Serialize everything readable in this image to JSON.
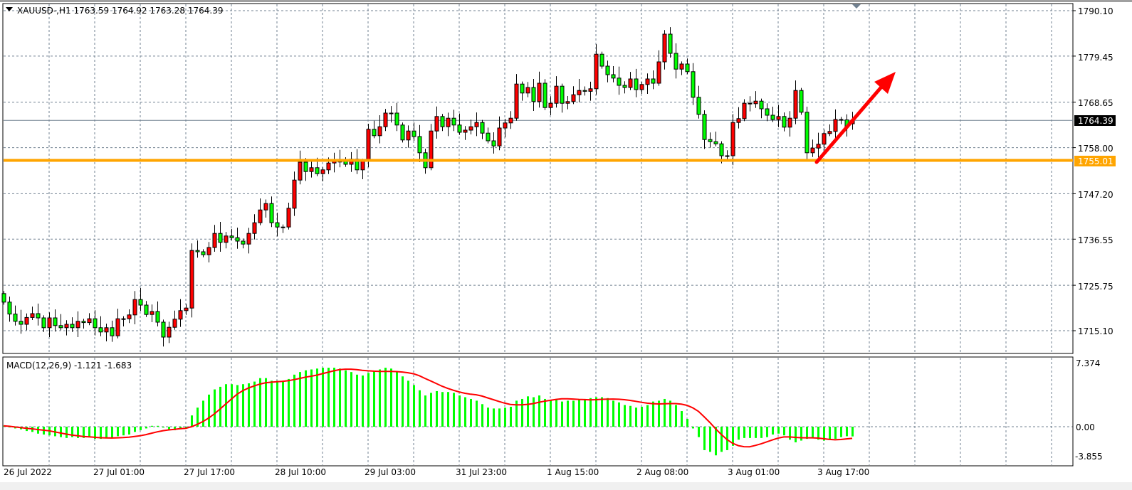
{
  "header": {
    "symbol": "XAUUSD-,H1",
    "open": "1763.59",
    "high": "1764.92",
    "low": "1763.28",
    "close": "1764.39"
  },
  "price_axis": {
    "ticks": [
      "1790.10",
      "1779.45",
      "1768.65",
      "1758.00",
      "1747.20",
      "1736.55",
      "1725.75",
      "1715.10"
    ],
    "current_price_label": "1764.39",
    "level_label": "1755.01"
  },
  "time_axis": {
    "labels": [
      "26 Jul 2022",
      "27 Jul 01:00",
      "27 Jul 17:00",
      "28 Jul 10:00",
      "29 Jul 03:00",
      "31 Jul 23:00",
      "1 Aug 15:00",
      "2 Aug 08:00",
      "3 Aug 01:00",
      "3 Aug 17:00"
    ]
  },
  "macd_panel": {
    "label": "MACD(12,26,9) -1.121 -1.683",
    "ticks": [
      "7.374",
      "0.00",
      "-3.855"
    ]
  },
  "colors": {
    "bull_candle": "#ff0000",
    "bear_candle": "#00ff00",
    "support_line": "#ffa500",
    "arrow": "#ff0000",
    "macd_histogram": "#00ff00",
    "signal_line": "#ff0000",
    "grid": "#708090"
  },
  "chart_data": [
    {
      "type": "candlestick",
      "title": "XAUUSD-,H1",
      "timeframe": "H1",
      "ylim": [
        1711.0,
        1791.7
      ],
      "grid": true,
      "first_open": 1723.8,
      "close": [
        1721.8,
        1719.0,
        1717.3,
        1716.6,
        1718.2,
        1719.1,
        1718.1,
        1715.8,
        1718.1,
        1716.3,
        1715.8,
        1716.6,
        1715.8,
        1717.3,
        1717.0,
        1717.9,
        1715.8,
        1714.8,
        1715.8,
        1713.9,
        1717.9,
        1717.9,
        1718.8,
        1722.4,
        1721.1,
        1718.9,
        1719.6,
        1717.1,
        1713.6,
        1715.9,
        1717.8,
        1719.8,
        1720.4,
        1733.9,
        1733.6,
        1732.9,
        1734.6,
        1737.9,
        1735.8,
        1737.3,
        1736.9,
        1736.1,
        1735.4,
        1737.9,
        1740.4,
        1743.4,
        1744.9,
        1740.4,
        1739.4,
        1739.4,
        1743.8,
        1750.4,
        1754.6,
        1752.4,
        1753.3,
        1751.9,
        1752.8,
        1754.4,
        1754.8,
        1754.8,
        1754.1,
        1755.3,
        1752.8,
        1754.8,
        1762.3,
        1760.8,
        1762.9,
        1766.1,
        1766.1,
        1763.3,
        1759.8,
        1761.9,
        1760.6,
        1756.8,
        1753.3,
        1761.9,
        1765.3,
        1762.9,
        1764.9,
        1763.3,
        1761.6,
        1762.1,
        1762.9,
        1763.9,
        1761.4,
        1759.6,
        1758.4,
        1762.6,
        1763.8,
        1764.9,
        1772.9,
        1770.8,
        1772.1,
        1768.8,
        1773.1,
        1767.4,
        1768.4,
        1772.4,
        1768.4,
        1768.8,
        1770.4,
        1771.4,
        1771.2,
        1771.8,
        1779.9,
        1777.1,
        1775.1,
        1774.3,
        1772.6,
        1772.1,
        1774.1,
        1771.6,
        1772.8,
        1774.1,
        1773.1,
        1778.1,
        1784.6,
        1780.1,
        1776.4,
        1777.6,
        1775.8,
        1769.8,
        1765.8,
        1759.9,
        1759.4,
        1758.9,
        1756.1,
        1756.1,
        1763.9,
        1764.8,
        1768.4,
        1768.3,
        1768.9,
        1767.1,
        1765.6,
        1764.6,
        1765.3,
        1762.8,
        1764.9,
        1771.4,
        1766.3,
        1756.8,
        1757.9,
        1758.8,
        1761.3,
        1761.8,
        1764.6,
        1764.5,
        1762.8,
        1764.39
      ],
      "horizontal_level": 1755.01,
      "current_price": 1764.39
    },
    {
      "type": "bar",
      "title": "MACD(12,26,9)",
      "ylim": [
        -3.855,
        7.374
      ],
      "signal_period": 9,
      "macd": [
        0.1,
        0.0,
        -0.2,
        -0.3,
        -0.5,
        -0.6,
        -0.8,
        -0.9,
        -1.0,
        -1.1,
        -1.2,
        -1.3,
        -1.2,
        -1.3,
        -1.3,
        -1.2,
        -1.4,
        -1.4,
        -1.3,
        -1.3,
        -1.1,
        -1.0,
        -0.9,
        -0.6,
        -0.4,
        -0.2,
        0.1,
        0.1,
        -0.1,
        -0.3,
        -0.4,
        -0.3,
        -0.2,
        1.3,
        2.2,
        3.0,
        3.7,
        4.3,
        4.6,
        4.9,
        4.9,
        4.8,
        4.9,
        5.0,
        5.2,
        5.6,
        5.6,
        5.3,
        5.3,
        5.3,
        5.5,
        6.0,
        6.3,
        6.5,
        6.6,
        6.7,
        6.8,
        6.8,
        6.8,
        6.7,
        6.5,
        6.3,
        6.0,
        5.9,
        6.2,
        6.4,
        6.6,
        6.8,
        6.7,
        6.3,
        5.8,
        5.3,
        4.8,
        4.2,
        3.6,
        3.9,
        4.1,
        4.0,
        4.0,
        3.9,
        3.6,
        3.4,
        3.2,
        3.0,
        2.6,
        2.2,
        2.1,
        2.1,
        2.2,
        2.3,
        3.0,
        3.2,
        3.5,
        3.4,
        3.6,
        3.2,
        3.0,
        3.1,
        2.9,
        3.0,
        3.0,
        3.1,
        3.2,
        3.3,
        3.4,
        3.4,
        3.3,
        3.0,
        2.8,
        2.5,
        2.4,
        2.2,
        2.3,
        2.5,
        2.9,
        3.0,
        3.2,
        3.0,
        2.5,
        1.8,
        0.9,
        -0.2,
        -1.2,
        -2.7,
        -2.9,
        -3.3,
        -2.9,
        -2.7,
        -2.2,
        -1.5,
        -1.3,
        -1.3,
        -1.3,
        -1.3,
        -1.2,
        -0.9,
        -0.8,
        -1.0,
        -1.5,
        -1.8,
        -1.6,
        -1.4,
        -1.3,
        -1.5,
        -1.6,
        -1.5,
        -1.4,
        -1.2,
        -1.1,
        -1.121
      ]
    }
  ]
}
